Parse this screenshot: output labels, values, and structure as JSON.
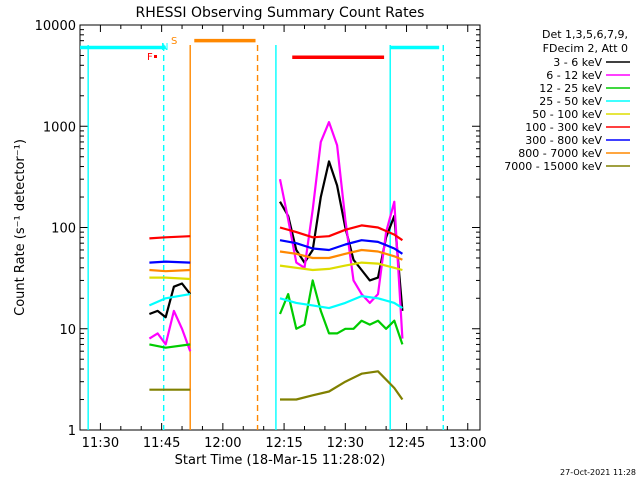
{
  "chart_data": {
    "type": "line",
    "title": "RHESSI Observing Summary Count Rates",
    "xlabel": "Start Time (18-Mar-15 11:28:02)",
    "ylabel": "Count Rate (s⁻¹ detector⁻¹)",
    "yscale": "log",
    "ylim": [
      1,
      10000
    ],
    "xlim_minutes": [
      -3,
      95
    ],
    "x_ticks": [
      "11:30",
      "11:45",
      "12:00",
      "12:15",
      "12:30",
      "12:45",
      "13:00"
    ],
    "y_ticks": [
      "1",
      "10",
      "100",
      "1000",
      "10000"
    ],
    "legend_header": [
      "Det 1,3,5,6,7,9,",
      "FDecim 2, Att 0"
    ],
    "legend_position": "right",
    "footer": "27-Oct-2021 11:28",
    "flags": [
      {
        "label": "F",
        "color": "#ff0000"
      },
      {
        "label": "N",
        "color": "#00ffff"
      },
      {
        "label": "S",
        "color": "#ff8800"
      }
    ],
    "series": [
      {
        "name": "3 - 6 keV",
        "color": "#000000",
        "segments": [
          {
            "x": [
              14,
              16,
              18,
              20,
              22,
              24
            ],
            "y": [
              14,
              15,
              13,
              26,
              28,
              22
            ]
          },
          {
            "x": [
              46,
              48,
              50,
              52,
              54,
              56,
              58,
              60,
              62,
              64,
              66,
              68,
              70,
              72,
              74,
              76
            ],
            "y": [
              180,
              130,
              60,
              45,
              60,
              200,
              450,
              260,
              100,
              48,
              38,
              30,
              32,
              80,
              130,
              15
            ]
          }
        ]
      },
      {
        "name": "6 - 12 keV",
        "color": "#ff00ff",
        "segments": [
          {
            "x": [
              14,
              16,
              18,
              20,
              22,
              24
            ],
            "y": [
              8,
              9,
              7,
              15,
              10,
              6
            ]
          },
          {
            "x": [
              46,
              48,
              50,
              52,
              54,
              56,
              58,
              60,
              62,
              64,
              66,
              68,
              70,
              72,
              74,
              76
            ],
            "y": [
              300,
              120,
              45,
              40,
              150,
              700,
              1100,
              650,
              120,
              30,
              22,
              18,
              22,
              90,
              180,
              8
            ]
          }
        ]
      },
      {
        "name": "12 - 25 keV",
        "color": "#00cc00",
        "segments": [
          {
            "x": [
              14,
              18,
              24
            ],
            "y": [
              7,
              6.5,
              7
            ]
          },
          {
            "x": [
              46,
              48,
              50,
              52,
              54,
              56,
              58,
              60,
              62,
              64,
              66,
              68,
              70,
              72,
              74,
              76
            ],
            "y": [
              14,
              22,
              10,
              11,
              30,
              15,
              9,
              9,
              10,
              10,
              12,
              11,
              12,
              10,
              12,
              7
            ]
          }
        ]
      },
      {
        "name": "25 - 50 keV",
        "color": "#00ffff",
        "segments": [
          {
            "x": [
              14,
              18,
              24
            ],
            "y": [
              17,
              20,
              22
            ]
          },
          {
            "x": [
              46,
              50,
              54,
              58,
              62,
              66,
              70,
              74,
              76
            ],
            "y": [
              20,
              18,
              17,
              16,
              18,
              21,
              20,
              18,
              16
            ]
          }
        ]
      },
      {
        "name": "50 - 100 keV",
        "color": "#dddd00",
        "segments": [
          {
            "x": [
              14,
              18,
              24
            ],
            "y": [
              32,
              32,
              31
            ]
          },
          {
            "x": [
              46,
              50,
              54,
              58,
              62,
              66,
              70,
              74,
              76
            ],
            "y": [
              42,
              40,
              38,
              39,
              42,
              45,
              44,
              40,
              38
            ]
          }
        ]
      },
      {
        "name": "100 - 300 keV",
        "color": "#ff0000",
        "segments": [
          {
            "x": [
              14,
              18,
              24
            ],
            "y": [
              78,
              80,
              82
            ]
          },
          {
            "x": [
              46,
              50,
              54,
              58,
              62,
              66,
              70,
              74,
              76
            ],
            "y": [
              100,
              90,
              80,
              82,
              95,
              105,
              100,
              85,
              75
            ]
          }
        ]
      },
      {
        "name": "300 - 800 keV",
        "color": "#0000ff",
        "segments": [
          {
            "x": [
              14,
              18,
              24
            ],
            "y": [
              45,
              46,
              45
            ]
          },
          {
            "x": [
              46,
              50,
              54,
              58,
              62,
              66,
              70,
              74,
              76
            ],
            "y": [
              75,
              70,
              62,
              60,
              68,
              75,
              72,
              62,
              55
            ]
          }
        ]
      },
      {
        "name": "800 - 7000 keV",
        "color": "#ff8800",
        "segments": [
          {
            "x": [
              14,
              18,
              24
            ],
            "y": [
              38,
              37,
              38
            ]
          },
          {
            "x": [
              46,
              50,
              54,
              58,
              62,
              66,
              70,
              74,
              76
            ],
            "y": [
              58,
              55,
              50,
              50,
              55,
              60,
              58,
              52,
              48
            ]
          }
        ]
      },
      {
        "name": "7000 - 15000 keV",
        "color": "#808000",
        "segments": [
          {
            "x": [
              14,
              18,
              24
            ],
            "y": [
              2.5,
              2.5,
              2.5
            ]
          },
          {
            "x": [
              46,
              50,
              54,
              58,
              62,
              66,
              70,
              74,
              76
            ],
            "y": [
              2,
              2,
              2.2,
              2.4,
              3,
              3.6,
              3.8,
              2.6,
              2
            ]
          }
        ]
      }
    ],
    "observing_flags": [
      {
        "name": "night",
        "color": "#00ffff",
        "y": 6000,
        "intervals": [
          [
            -3,
            18
          ],
          [
            73,
            85
          ]
        ]
      },
      {
        "name": "saa",
        "color": "#ff8800",
        "y": 7000,
        "intervals": [
          [
            25,
            40
          ]
        ]
      },
      {
        "name": "flare",
        "color": "#ff0000",
        "y": 4800,
        "intervals": [
          [
            49,
            71.5
          ]
        ]
      }
    ],
    "vertical_lines": [
      {
        "color": "#00ffff",
        "style": "solid",
        "x": [
          -1,
          45,
          73
        ]
      },
      {
        "color": "#00ffff",
        "style": "dashed",
        "x": [
          17.5,
          86
        ]
      },
      {
        "color": "#ff8800",
        "style": "solid",
        "x": [
          24
        ]
      },
      {
        "color": "#ff8800",
        "style": "dashed",
        "x": [
          40.5
        ]
      }
    ]
  }
}
